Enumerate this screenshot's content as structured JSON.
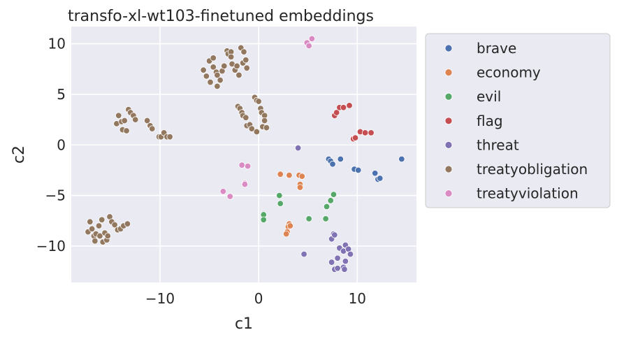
{
  "chart_data": {
    "type": "scatter",
    "title": "transfo-xl-wt103-finetuned embeddings",
    "xlabel": "c1",
    "ylabel": "c2",
    "xlim": [
      -19.0,
      16.0
    ],
    "ylim": [
      -13.6,
      11.7
    ],
    "xticks": [
      -10,
      0,
      10
    ],
    "yticks": [
      -10,
      -5,
      0,
      5,
      10
    ],
    "grid": true,
    "legend_position": "outside-right",
    "series": [
      {
        "name": "brave",
        "color": "#4c72b0",
        "points": [
          [
            7.1,
            -1.4
          ],
          [
            7.3,
            -1.6
          ],
          [
            7.5,
            -1.9
          ],
          [
            8.3,
            -1.4
          ],
          [
            9.7,
            -2.4
          ],
          [
            10.1,
            -2.5
          ],
          [
            11.8,
            -2.8
          ],
          [
            12.1,
            -3.4
          ],
          [
            12.3,
            -3.3
          ],
          [
            14.5,
            -1.4
          ]
        ]
      },
      {
        "name": "economy",
        "color": "#dd8452",
        "points": [
          [
            2.2,
            -2.9
          ],
          [
            3.1,
            -3.0
          ],
          [
            4.1,
            -3.0
          ],
          [
            4.4,
            -3.1
          ],
          [
            4.2,
            -3.9
          ],
          [
            4.2,
            -4.2
          ],
          [
            3.1,
            -7.8
          ],
          [
            3.0,
            -8.1
          ],
          [
            3.2,
            -8.0
          ],
          [
            2.9,
            -8.6
          ],
          [
            2.8,
            -8.8
          ]
        ]
      },
      {
        "name": "evil",
        "color": "#55a868",
        "points": [
          [
            6.9,
            -6.1
          ],
          [
            7.3,
            -5.5
          ],
          [
            7.6,
            -4.9
          ],
          [
            2.1,
            -5.0
          ],
          [
            2.2,
            -5.8
          ],
          [
            0.5,
            -6.9
          ],
          [
            0.5,
            -7.4
          ],
          [
            5.1,
            -7.3
          ],
          [
            6.8,
            -7.3
          ]
        ]
      },
      {
        "name": "flag",
        "color": "#c44e52",
        "points": [
          [
            7.7,
            2.9
          ],
          [
            7.9,
            3.2
          ],
          [
            8.2,
            3.7
          ],
          [
            8.6,
            3.7
          ],
          [
            9.2,
            3.9
          ],
          [
            9.6,
            0.6
          ],
          [
            9.8,
            0.7
          ],
          [
            10.3,
            1.3
          ],
          [
            10.8,
            1.2
          ],
          [
            11.4,
            1.2
          ]
        ]
      },
      {
        "name": "threat",
        "color": "#8172b3",
        "points": [
          [
            4.0,
            -0.3
          ],
          [
            4.6,
            -10.8
          ],
          [
            7.4,
            -9.3
          ],
          [
            7.6,
            -8.8
          ],
          [
            7.7,
            -8.9
          ],
          [
            8.2,
            -10.2
          ],
          [
            8.6,
            -10.5
          ],
          [
            8.8,
            -9.9
          ],
          [
            9.1,
            -10.3
          ],
          [
            9.3,
            -10.8
          ],
          [
            7.4,
            -11.6
          ],
          [
            8.0,
            -11.2
          ],
          [
            8.8,
            -11.5
          ],
          [
            7.7,
            -12.3
          ],
          [
            8.0,
            -12.2
          ],
          [
            8.6,
            -12.1
          ],
          [
            8.7,
            -12.3
          ]
        ]
      },
      {
        "name": "treatyobligation",
        "color": "#937860",
        "points": [
          [
            -5.6,
            7.4
          ],
          [
            -5.3,
            6.8
          ],
          [
            -5.0,
            8.3
          ],
          [
            -4.9,
            6.2
          ],
          [
            -4.6,
            8.6
          ],
          [
            -4.6,
            7.7
          ],
          [
            -4.3,
            7.2
          ],
          [
            -4.2,
            6.9
          ],
          [
            -4.2,
            5.8
          ],
          [
            -3.9,
            6.4
          ],
          [
            -3.7,
            7.3
          ],
          [
            -3.5,
            7.8
          ],
          [
            -3.2,
            9.3
          ],
          [
            -3.1,
            9.0
          ],
          [
            -2.8,
            9.2
          ],
          [
            -2.8,
            8.7
          ],
          [
            -2.7,
            8.0
          ],
          [
            -2.4,
            7.4
          ],
          [
            -2.2,
            7.8
          ],
          [
            -2.0,
            6.9
          ],
          [
            -1.8,
            9.6
          ],
          [
            -1.6,
            8.1
          ],
          [
            -1.5,
            9.2
          ],
          [
            -1.3,
            8.4
          ],
          [
            -1.2,
            7.6
          ],
          [
            -2.1,
            3.8
          ],
          [
            -1.9,
            3.6
          ],
          [
            -1.7,
            3.2
          ],
          [
            -1.6,
            2.9
          ],
          [
            -1.3,
            2.7
          ],
          [
            -1.2,
            1.9
          ],
          [
            -0.9,
            2.0
          ],
          [
            -0.7,
            1.6
          ],
          [
            -0.4,
            4.7
          ],
          [
            -0.2,
            4.4
          ],
          [
            0.0,
            4.3
          ],
          [
            0.2,
            3.6
          ],
          [
            0.3,
            3.2
          ],
          [
            0.6,
            2.9
          ],
          [
            0.6,
            2.4
          ],
          [
            0.4,
            1.8
          ],
          [
            0.8,
            1.7
          ],
          [
            -0.2,
            1.3
          ],
          [
            -14.4,
            2.1
          ],
          [
            -14.2,
            2.9
          ],
          [
            -13.9,
            2.3
          ],
          [
            -13.8,
            1.5
          ],
          [
            -13.6,
            2.4
          ],
          [
            -13.4,
            1.4
          ],
          [
            -13.2,
            3.5
          ],
          [
            -13.0,
            3.2
          ],
          [
            -12.7,
            2.9
          ],
          [
            -12.5,
            2.5
          ],
          [
            -11.3,
            2.4
          ],
          [
            -11.0,
            1.9
          ],
          [
            -10.8,
            1.6
          ],
          [
            -10.1,
            0.8
          ],
          [
            -9.9,
            0.8
          ],
          [
            -9.6,
            1.2
          ],
          [
            -9.3,
            0.8
          ],
          [
            -9.0,
            0.8
          ],
          [
            -17.3,
            -8.6
          ],
          [
            -17.1,
            -7.6
          ],
          [
            -16.9,
            -8.3
          ],
          [
            -16.7,
            -9.0
          ],
          [
            -16.5,
            -8.8
          ],
          [
            -16.2,
            -8.0
          ],
          [
            -16.1,
            -9.0
          ],
          [
            -15.8,
            -9.6
          ],
          [
            -15.6,
            -8.7
          ],
          [
            -15.4,
            -9.4
          ],
          [
            -15.1,
            -7.1
          ],
          [
            -14.9,
            -7.6
          ],
          [
            -14.6,
            -7.9
          ],
          [
            -14.3,
            -8.4
          ],
          [
            -14.0,
            -8.3
          ],
          [
            -13.7,
            -8.0
          ],
          [
            -13.3,
            -7.8
          ],
          [
            -15.9,
            -7.4
          ],
          [
            -16.6,
            -9.5
          ],
          [
            -15.3,
            -9.0
          ]
        ]
      },
      {
        "name": "treatyviolation",
        "color": "#da8bc3",
        "points": [
          [
            4.9,
            10.1
          ],
          [
            5.1,
            9.8
          ],
          [
            5.4,
            10.5
          ],
          [
            -1.7,
            -2.0
          ],
          [
            -1.1,
            -2.1
          ],
          [
            -1.4,
            -3.8
          ],
          [
            -1.4,
            -3.9
          ],
          [
            -3.6,
            -4.6
          ],
          [
            -2.9,
            -5.1
          ]
        ]
      }
    ]
  }
}
